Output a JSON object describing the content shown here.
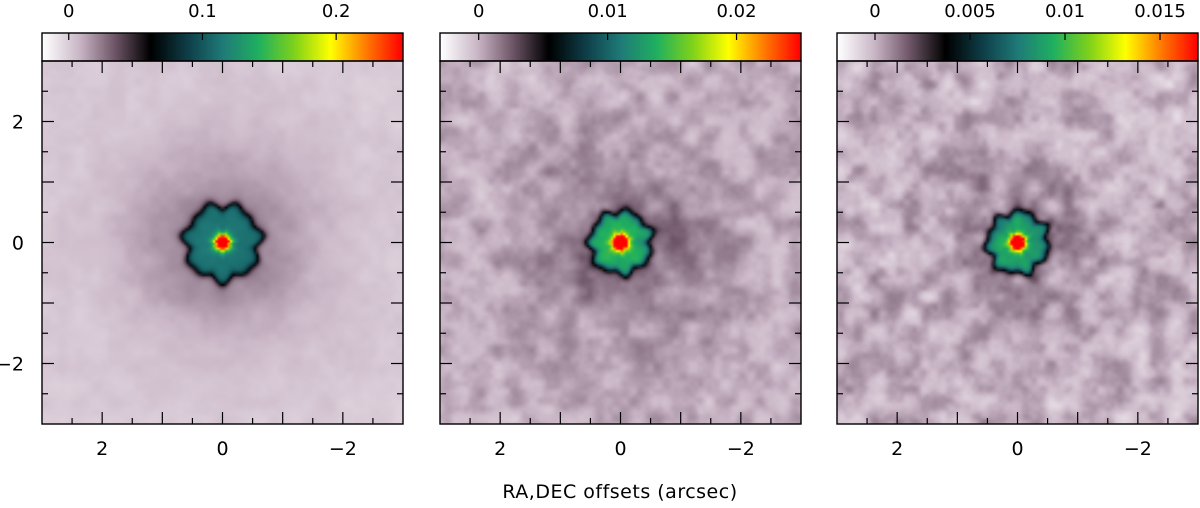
{
  "chart_data": {
    "type": "heatmap",
    "xlabel": "RA,DEC offsets (arcsec)",
    "colormap": {
      "name": "white-purple-black-teal-green-yellow-red",
      "stops": [
        "#ffffff",
        "#cbb8c8",
        "#6e5668",
        "#000000",
        "#0e3c46",
        "#1f7a78",
        "#1fb060",
        "#7fd21a",
        "#ffff00",
        "#ff7a00",
        "#ff0000"
      ]
    },
    "panels": [
      {
        "id": "panel-1",
        "colorbar_ticks": [
          "0",
          "0.1",
          "0.2"
        ],
        "colorbar_tick_values": [
          0,
          0.1,
          0.2
        ],
        "colorbar_range": [
          -0.02,
          0.25
        ],
        "peak": 0.25,
        "noise": 0.004,
        "halo": 0.024,
        "xlim": [
          3,
          -3
        ],
        "ylim": [
          -3,
          3
        ],
        "x_ticks": [
          "2",
          "0",
          "−2"
        ],
        "x_tick_values": [
          2,
          0,
          -2
        ],
        "y_ticks": [
          "2",
          "0",
          "−2"
        ],
        "y_tick_values": [
          2,
          0,
          -2
        ]
      },
      {
        "id": "panel-2",
        "colorbar_ticks": [
          "0",
          "0.01",
          "0.02"
        ],
        "colorbar_tick_values": [
          0,
          0.01,
          0.02
        ],
        "colorbar_range": [
          -0.003,
          0.025
        ],
        "peak": 0.028,
        "noise": 0.0014,
        "halo": 0.002,
        "xlim": [
          3,
          -3
        ],
        "ylim": [
          -3,
          3
        ],
        "x_ticks": [
          "2",
          "0",
          "−2"
        ],
        "x_tick_values": [
          2,
          0,
          -2
        ]
      },
      {
        "id": "panel-3",
        "colorbar_ticks": [
          "0",
          "0.005",
          "0.01",
          "0.015"
        ],
        "colorbar_tick_values": [
          0,
          0.005,
          0.01,
          0.015
        ],
        "colorbar_range": [
          -0.002,
          0.017
        ],
        "peak": 0.019,
        "noise": 0.0013,
        "halo": 0.0008,
        "xlim": [
          3,
          -3
        ],
        "ylim": [
          -3,
          3
        ],
        "x_ticks": [
          "2",
          "0",
          "−2"
        ],
        "x_tick_values": [
          2,
          0,
          -2
        ]
      }
    ]
  }
}
